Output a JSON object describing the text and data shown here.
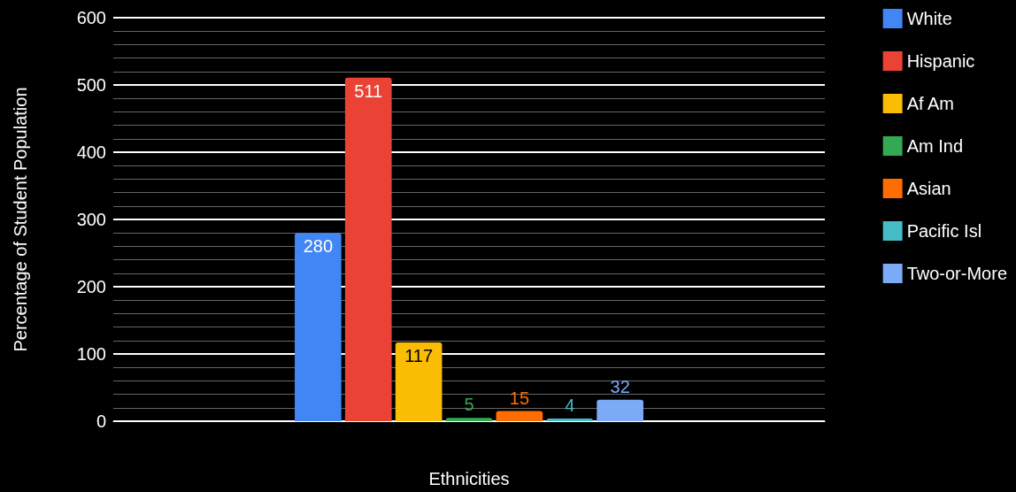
{
  "chart_data": {
    "type": "bar",
    "xlabel": "Ethnicities",
    "ylabel": "Percentage of Student Population",
    "categories": [
      null
    ],
    "series": [
      {
        "name": "White",
        "color": "#4285f4",
        "values": [
          280
        ]
      },
      {
        "name": "Hispanic",
        "color": "#ea4335",
        "values": [
          511
        ]
      },
      {
        "name": "Af Am",
        "color": "#fbbc04",
        "values": [
          117
        ]
      },
      {
        "name": "Am Ind",
        "color": "#34a853",
        "values": [
          5
        ]
      },
      {
        "name": "Asian",
        "color": "#ff6d01",
        "values": [
          15
        ]
      },
      {
        "name": "Pacific Isl",
        "color": "#46bdc6",
        "values": [
          4
        ]
      },
      {
        "name": "Two-or-More",
        "color": "#7baaf7",
        "values": [
          32
        ]
      }
    ],
    "ylim": [
      0,
      600
    ],
    "yticks": [
      0,
      100,
      200,
      300,
      400,
      500,
      600
    ],
    "grid": "y",
    "legend": "right",
    "data_labels": true
  }
}
